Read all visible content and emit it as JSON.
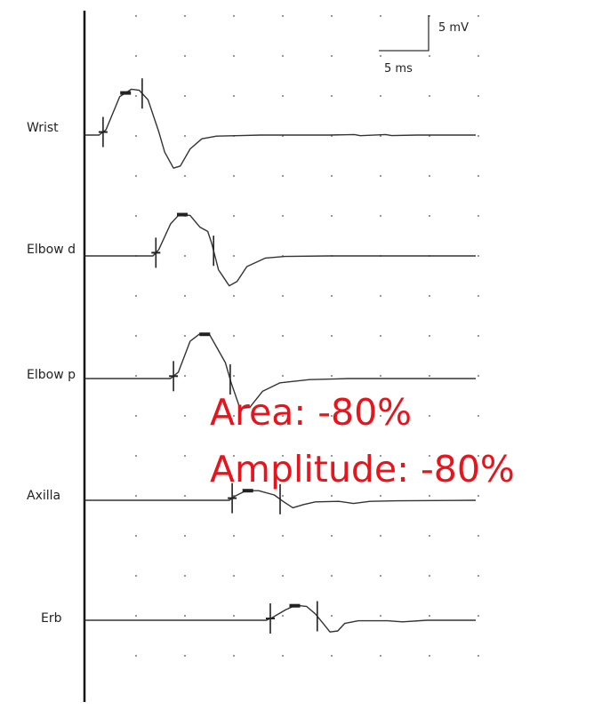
{
  "chart_data": {
    "type": "line",
    "x_unit": "ms",
    "y_unit": "mV",
    "scale_bar": {
      "amplitude_label": "5 mV",
      "time_label": "5 ms",
      "amplitude_mV": 5,
      "time_ms": 5
    },
    "series": [
      {
        "name": "Wrist",
        "points": [
          [
            0,
            0
          ],
          [
            1.5,
            0
          ],
          [
            2.2,
            0.5
          ],
          [
            3.6,
            3.6
          ],
          [
            4.8,
            4.3
          ],
          [
            5.6,
            4.2
          ],
          [
            6.5,
            3.3
          ],
          [
            7.6,
            0.3
          ],
          [
            8.2,
            -1.6
          ],
          [
            9.1,
            -3.1
          ],
          [
            9.8,
            -2.9
          ],
          [
            10.8,
            -1.3
          ],
          [
            12,
            -0.35
          ],
          [
            13.5,
            -0.1
          ],
          [
            16,
            -0.05
          ],
          [
            18,
            0
          ],
          [
            22,
            0
          ],
          [
            25,
            0
          ],
          [
            27.6,
            0.05
          ],
          [
            28.2,
            -0.06
          ],
          [
            30.8,
            0.05
          ],
          [
            31.4,
            -0.05
          ],
          [
            34,
            0
          ],
          [
            40,
            0
          ]
        ],
        "onset_marker_ms": 1.9,
        "offset_marker_ms": 5.9,
        "peak_marker_ms": 4.2
      },
      {
        "name": "Elbow d",
        "points": [
          [
            0,
            0
          ],
          [
            7,
            0
          ],
          [
            7.6,
            0.6
          ],
          [
            8.8,
            3.0
          ],
          [
            9.7,
            3.9
          ],
          [
            10.8,
            3.8
          ],
          [
            11.8,
            2.7
          ],
          [
            12.6,
            2.3
          ],
          [
            13,
            1.2
          ],
          [
            13.7,
            -1.3
          ],
          [
            14.8,
            -2.8
          ],
          [
            15.6,
            -2.4
          ],
          [
            16.6,
            -1.0
          ],
          [
            18.5,
            -0.2
          ],
          [
            20.5,
            -0.05
          ],
          [
            25,
            0
          ],
          [
            30,
            0
          ],
          [
            40,
            0
          ]
        ],
        "onset_marker_ms": 7.3,
        "offset_marker_ms": 13.2,
        "peak_marker_ms": 10.0
      },
      {
        "name": "Elbow p",
        "points": [
          [
            0,
            0
          ],
          [
            8.8,
            0
          ],
          [
            9.6,
            0.6
          ],
          [
            10.8,
            3.5
          ],
          [
            11.8,
            4.2
          ],
          [
            12.8,
            4.1
          ],
          [
            13.6,
            2.8
          ],
          [
            14.4,
            1.5
          ],
          [
            15,
            -0.4
          ],
          [
            15.9,
            -2.8
          ],
          [
            16.9,
            -2.7
          ],
          [
            18.2,
            -1.2
          ],
          [
            20,
            -0.4
          ],
          [
            23,
            -0.1
          ],
          [
            27,
            0
          ],
          [
            33,
            0
          ],
          [
            40,
            0
          ]
        ],
        "onset_marker_ms": 9.1,
        "offset_marker_ms": 14.9,
        "peak_marker_ms": 12.3
      },
      {
        "name": "Axilla",
        "points": [
          [
            0,
            0
          ],
          [
            14.8,
            0
          ],
          [
            15.4,
            0.4
          ],
          [
            16.5,
            0.9
          ],
          [
            17.8,
            0.9
          ],
          [
            19.4,
            0.5
          ],
          [
            20.3,
            -0.1
          ],
          [
            21.3,
            -0.7
          ],
          [
            22.4,
            -0.4
          ],
          [
            23.6,
            -0.15
          ],
          [
            26,
            -0.1
          ],
          [
            27.5,
            -0.3
          ],
          [
            29.2,
            -0.1
          ],
          [
            32,
            -0.05
          ],
          [
            40,
            0
          ]
        ],
        "onset_marker_ms": 15.1,
        "offset_marker_ms": 20.0,
        "peak_marker_ms": 16.7
      },
      {
        "name": "Erb",
        "points": [
          [
            0,
            0
          ],
          [
            18.6,
            0
          ],
          [
            19.2,
            0.25
          ],
          [
            20.6,
            1.0
          ],
          [
            21.6,
            1.4
          ],
          [
            22.7,
            1.3
          ],
          [
            23.6,
            0.6
          ],
          [
            24.4,
            -0.3
          ],
          [
            25.1,
            -1.1
          ],
          [
            25.9,
            -1.0
          ],
          [
            26.6,
            -0.3
          ],
          [
            28,
            -0.05
          ],
          [
            31,
            -0.05
          ],
          [
            32.5,
            -0.15
          ],
          [
            35,
            0
          ],
          [
            40,
            0
          ]
        ],
        "onset_marker_ms": 19.0,
        "offset_marker_ms": 23.8,
        "peak_marker_ms": 21.5
      }
    ]
  },
  "annotation": {
    "line1": "Area: -80%",
    "line2": "Amplitude: -80%",
    "color": "#e8141b"
  },
  "style": {
    "trace_color": "#333333",
    "marker_color": "#222222",
    "grid_dot_color": "#777777"
  }
}
